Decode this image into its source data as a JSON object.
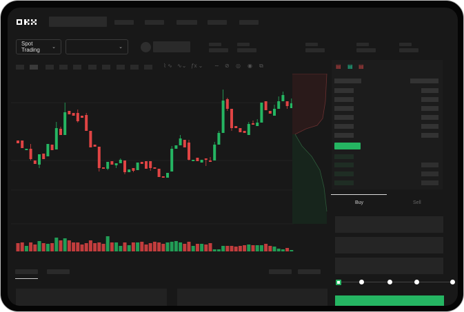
{
  "header": {
    "logo": "OKX"
  },
  "market_selector": {
    "label": "Spot Trading",
    "value": ""
  },
  "order_form": {
    "tabs": [
      {
        "label": "Buy",
        "active": true
      },
      {
        "label": "Sell",
        "active": false
      }
    ],
    "slider_percent": 0
  },
  "colors": {
    "up": "#25b562",
    "down": "#e04444",
    "background": "#181818"
  },
  "chart_data": {
    "type": "candlestick",
    "candles": [
      [
        167,
        163,
        167,
        163
      ],
      [
        167,
        156,
        167,
        156
      ],
      [
        153,
        155,
        155,
        153
      ],
      [
        155,
        140,
        162,
        138
      ],
      [
        138,
        133,
        138,
        133
      ],
      [
        132,
        147,
        147,
        127
      ],
      [
        148,
        140,
        148,
        140
      ],
      [
        144,
        162,
        162,
        144
      ],
      [
        161,
        153,
        161,
        153
      ],
      [
        154,
        185,
        194,
        154
      ],
      [
        184,
        175,
        187,
        175
      ],
      [
        175,
        208,
        222,
        175
      ],
      [
        210,
        205,
        210,
        205
      ],
      [
        207,
        203,
        207,
        203
      ],
      [
        207,
        195,
        212,
        193
      ],
      [
        203,
        200,
        203,
        200
      ],
      [
        204,
        181,
        207,
        181
      ],
      [
        181,
        157,
        181,
        157
      ],
      [
        161,
        158,
        161,
        158
      ],
      [
        158,
        127,
        158,
        122
      ],
      [
        128,
        126,
        128,
        126
      ],
      [
        126,
        136,
        136,
        124
      ],
      [
        137,
        132,
        137,
        132
      ],
      [
        131,
        134,
        134,
        127
      ],
      [
        134,
        139,
        141,
        134
      ],
      [
        138,
        121,
        138,
        118
      ],
      [
        121,
        125,
        125,
        121
      ],
      [
        127,
        123,
        127,
        121
      ],
      [
        124,
        135,
        135,
        124
      ],
      [
        136,
        133,
        136,
        133
      ],
      [
        137,
        126,
        137,
        126
      ],
      [
        137,
        127,
        137,
        123
      ],
      [
        128,
        127,
        128,
        127
      ],
      [
        126,
        114,
        126,
        114
      ],
      [
        115,
        113,
        115,
        113
      ],
      [
        113,
        120,
        120,
        113
      ],
      [
        122,
        155,
        159,
        122
      ],
      [
        155,
        160,
        160,
        155
      ],
      [
        160,
        170,
        175,
        160
      ],
      [
        168,
        157,
        168,
        157
      ],
      [
        164,
        139,
        168,
        138
      ],
      [
        137,
        139,
        139,
        137
      ],
      [
        142,
        137,
        142,
        137
      ],
      [
        135,
        139,
        139,
        135
      ],
      [
        141,
        139,
        141,
        130
      ],
      [
        138,
        136,
        143,
        136
      ],
      [
        138,
        161,
        165,
        138
      ],
      [
        161,
        178,
        181,
        161
      ],
      [
        178,
        225,
        241,
        178
      ],
      [
        227,
        213,
        229,
        210
      ],
      [
        213,
        185,
        213,
        181
      ],
      [
        188,
        185,
        188,
        185
      ],
      [
        185,
        179,
        185,
        179
      ],
      [
        181,
        178,
        181,
        178
      ],
      [
        175,
        191,
        194,
        175
      ],
      [
        192,
        190,
        196,
        190
      ],
      [
        188,
        193,
        198,
        188
      ],
      [
        193,
        222,
        222,
        193
      ],
      [
        224,
        211,
        224,
        211
      ],
      [
        210,
        206,
        210,
        206
      ],
      [
        203,
        213,
        219,
        203
      ],
      [
        213,
        224,
        231,
        213
      ],
      [
        224,
        233,
        238,
        224
      ],
      [
        224,
        217,
        224,
        213
      ],
      [
        214,
        221,
        228,
        214
      ]
    ],
    "volumes": [
      12,
      13,
      8,
      13,
      10,
      15,
      12,
      11,
      12,
      20,
      16,
      19,
      16,
      13,
      13,
      10,
      12,
      16,
      12,
      13,
      11,
      22,
      13,
      13,
      8,
      13,
      9,
      13,
      13,
      14,
      10,
      12,
      14,
      13,
      11,
      13,
      14,
      15,
      13,
      11,
      14,
      8,
      11,
      11,
      10,
      12,
      3,
      3,
      8,
      8,
      8,
      7,
      8,
      9,
      10,
      9,
      9,
      9,
      11,
      8,
      7,
      4,
      3,
      5,
      2
    ]
  }
}
